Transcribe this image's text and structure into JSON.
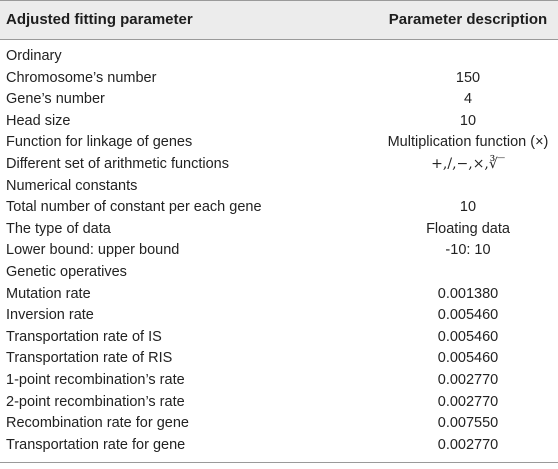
{
  "header": {
    "col1": "Adjusted fitting parameter",
    "col2": "Parameter description"
  },
  "rows": [
    {
      "param": "Ordinary",
      "value": ""
    },
    {
      "param": "Chromosome’s number",
      "value": "150"
    },
    {
      "param": "Gene’s number",
      "value": "4"
    },
    {
      "param": "Head size",
      "value": "10"
    },
    {
      "param": "Function for linkage of genes",
      "value": "Multiplication function (×)"
    },
    {
      "param": "Different set of arithmetic functions",
      "value": "+,/,−,×,∛‾"
    },
    {
      "param": "Numerical constants",
      "value": ""
    },
    {
      "param": "Total number of constant per each gene",
      "value": "10"
    },
    {
      "param": "The type of data",
      "value": "Floating data"
    },
    {
      "param": "Lower bound: upper bound",
      "value": "-10: 10"
    },
    {
      "param": "Genetic operatives",
      "value": ""
    },
    {
      "param": "Mutation rate",
      "value": "0.001380"
    },
    {
      "param": "Inversion rate",
      "value": "0.005460"
    },
    {
      "param": "Transportation rate of IS",
      "value": "0.005460"
    },
    {
      "param": "Transportation rate of RIS",
      "value": "0.005460"
    },
    {
      "param": "1-point recombination’s rate",
      "value": "0.002770"
    },
    {
      "param": "2-point recombination’s rate",
      "value": "0.002770"
    },
    {
      "param": "Recombination rate for gene",
      "value": "0.007550"
    },
    {
      "param": "Transportation rate for gene",
      "value": "0.002770"
    }
  ]
}
